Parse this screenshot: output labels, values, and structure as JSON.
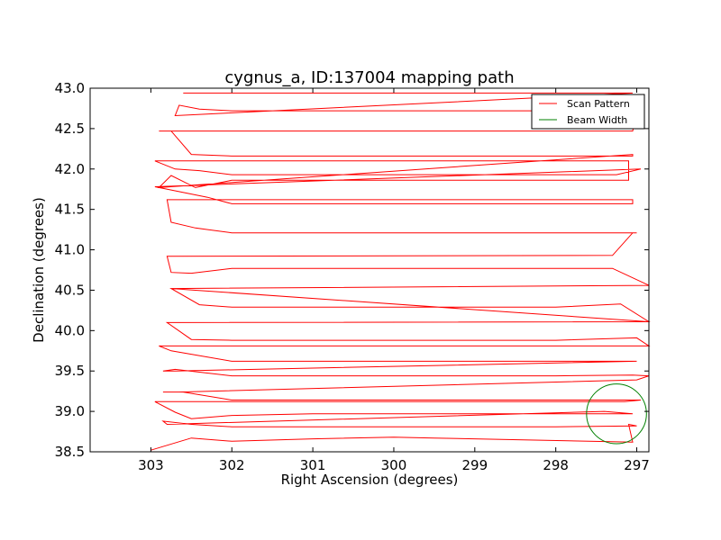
{
  "chart_data": {
    "type": "line",
    "title": "cygnus_a, ID:137004 mapping path",
    "xlabel": "Right Ascension (degrees)",
    "ylabel": "Declination (degrees)",
    "xlim": [
      303.75,
      296.85
    ],
    "ylim": [
      38.5,
      43.0
    ],
    "x_ticks": [
      303,
      302,
      301,
      300,
      299,
      298,
      297
    ],
    "y_ticks": [
      38.5,
      39.0,
      39.5,
      40.0,
      40.5,
      41.0,
      41.5,
      42.0,
      42.5,
      43.0
    ],
    "grid": false,
    "legend": "top-right",
    "colors": {
      "scan": "#ff0000",
      "beam": "#008000"
    },
    "series": [
      {
        "name": "Scan Pattern",
        "kind": "scan",
        "x": [
          303.0,
          302.5,
          302.0,
          301.0,
          300.0,
          299.5,
          297.05,
          297.1,
          297.0,
          298.0,
          299.0,
          300.0,
          301.0,
          302.0,
          302.5,
          302.85,
          302.8,
          297.4,
          297.05,
          297.05,
          298.0,
          299.0,
          300.0,
          301.0,
          302.0,
          302.5,
          302.7,
          302.95,
          302.7,
          297.15,
          296.95,
          297.1,
          298.0,
          299.0,
          300.0,
          301.0,
          302.0,
          302.6,
          302.85,
          302.65,
          297.0,
          296.85,
          297.05,
          298.0,
          299.0,
          300.0,
          301.0,
          302.0,
          302.7,
          302.85,
          302.7,
          297.0,
          297.0,
          298.0,
          299.0,
          300.0,
          301.0,
          302.0,
          302.75,
          302.9,
          302.75,
          296.85,
          297.0,
          298.0,
          299.0,
          300.0,
          301.0,
          302.0,
          302.5,
          302.8,
          302.65,
          296.85,
          297.2,
          298.0,
          299.0,
          300.0,
          301.0,
          302.0,
          302.4,
          302.75,
          302.75,
          296.85,
          297.2,
          298.0,
          299.0,
          300.0,
          301.0,
          302.0,
          302.4,
          302.75,
          302.75,
          296.85,
          297.3,
          298.0,
          299.0,
          300.0,
          301.0,
          302.0,
          302.5,
          302.75,
          302.8,
          297.3,
          297.05,
          297.0,
          298.0,
          299.0,
          300.0,
          301.0,
          302.0,
          302.45,
          302.75,
          302.8,
          297.05,
          297.05,
          297.2,
          298.0,
          299.0,
          300.0,
          301.0,
          302.0,
          302.3,
          302.7,
          302.95,
          296.95,
          297.25,
          298.0,
          299.0,
          300.0,
          301.0,
          302.0,
          302.4,
          302.7,
          302.95,
          297.1,
          297.1,
          297.4,
          298.0,
          299.0,
          300.0,
          301.0,
          302.0,
          302.45,
          302.75,
          302.9,
          297.05,
          297.05,
          297.6,
          298.0,
          299.0,
          300.0,
          301.0,
          302.0,
          302.5,
          302.75,
          302.9,
          297.05,
          297.0,
          297.4,
          298.0,
          299.0,
          300.0,
          301.0,
          302.0,
          302.4,
          302.65,
          302.7,
          297.05,
          297.4,
          298.0,
          299.0,
          300.0,
          301.0,
          302.0,
          302.6
        ],
        "y": [
          38.52,
          38.67,
          38.63,
          38.66,
          38.68,
          38.67,
          38.62,
          38.84,
          38.82,
          38.81,
          38.81,
          38.81,
          38.81,
          38.81,
          38.84,
          38.88,
          38.84,
          39.0,
          38.97,
          38.97,
          38.97,
          38.97,
          38.97,
          38.97,
          38.95,
          38.91,
          38.99,
          39.12,
          39.12,
          39.12,
          39.14,
          39.14,
          39.14,
          39.14,
          39.14,
          39.14,
          39.14,
          39.24,
          39.24,
          39.24,
          39.39,
          39.44,
          39.45,
          39.44,
          39.44,
          39.44,
          39.44,
          39.44,
          39.52,
          39.5,
          39.5,
          39.62,
          39.62,
          39.62,
          39.62,
          39.62,
          39.62,
          39.62,
          39.75,
          39.81,
          39.81,
          39.81,
          39.91,
          39.88,
          39.88,
          39.88,
          39.88,
          39.88,
          39.89,
          40.1,
          40.1,
          40.11,
          40.33,
          40.29,
          40.29,
          40.29,
          40.29,
          40.29,
          40.32,
          40.52,
          40.52,
          40.11,
          40.33,
          40.29,
          40.29,
          40.29,
          40.29,
          40.29,
          40.32,
          40.52,
          40.52,
          40.56,
          40.77,
          40.77,
          40.77,
          40.77,
          40.77,
          40.77,
          40.71,
          40.72,
          40.92,
          40.93,
          41.21,
          41.21,
          41.21,
          41.21,
          41.21,
          41.21,
          41.21,
          41.27,
          41.34,
          41.62,
          41.62,
          41.57,
          41.57,
          41.57,
          41.57,
          41.57,
          41.57,
          41.57,
          41.65,
          41.73,
          41.78,
          42.0,
          41.93,
          41.93,
          41.93,
          41.93,
          41.93,
          41.93,
          41.98,
          42.0,
          42.1,
          42.1,
          41.86,
          41.86,
          41.86,
          41.86,
          41.86,
          41.86,
          41.86,
          41.77,
          41.92,
          41.77,
          42.18,
          42.16,
          42.16,
          42.16,
          42.16,
          42.16,
          42.16,
          42.16,
          42.18,
          42.47,
          42.47,
          42.47,
          42.71,
          42.72,
          42.72,
          42.72,
          42.72,
          42.72,
          42.72,
          42.74,
          42.79,
          42.66,
          42.94,
          42.94,
          42.94,
          42.94,
          42.94,
          42.94,
          42.94,
          42.94
        ]
      },
      {
        "name": "Beam Width",
        "kind": "circle",
        "center_x": 297.25,
        "center_y": 38.97,
        "radius": 0.37
      }
    ]
  },
  "legend": {
    "items": [
      {
        "label": "Scan Pattern",
        "color": "#ff0000"
      },
      {
        "label": "Beam Width",
        "color": "#008000"
      }
    ]
  }
}
